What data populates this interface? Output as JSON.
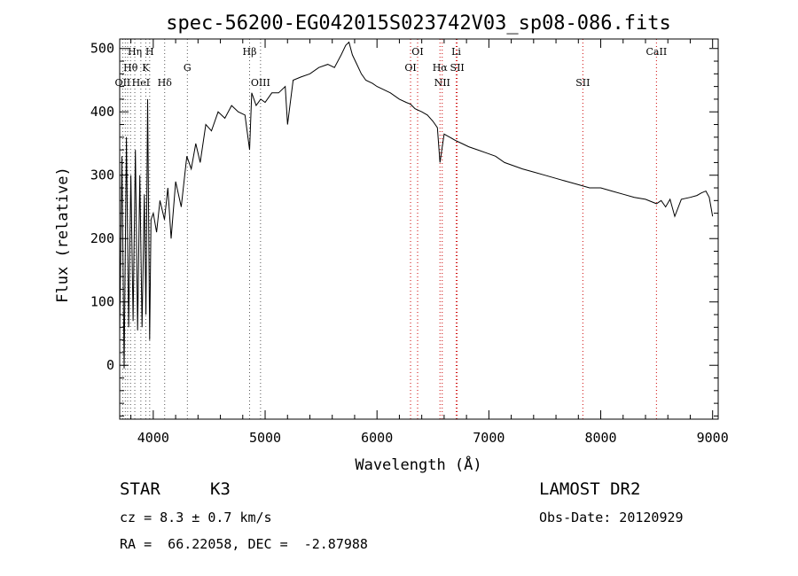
{
  "chart_data": {
    "type": "line",
    "title": "spec-56200-EG042015S023742V03_sp08-086.fits",
    "xlabel": "Wavelength (Å)",
    "ylabel": "Flux (relative)",
    "xlim": [
      3700,
      9050
    ],
    "ylim": [
      -85,
      515
    ],
    "x_ticks": [
      4000,
      5000,
      6000,
      7000,
      8000,
      9000
    ],
    "y_ticks": [
      0,
      100,
      200,
      300,
      400,
      500
    ],
    "grid": false,
    "series": [
      {
        "color": "#000000",
        "x": [
          3700,
          3720,
          3740,
          3760,
          3780,
          3800,
          3820,
          3840,
          3860,
          3880,
          3900,
          3920,
          3935,
          3950,
          3968,
          3980,
          4000,
          4030,
          4060,
          4100,
          4130,
          4160,
          4200,
          4250,
          4300,
          4340,
          4380,
          4420,
          4470,
          4520,
          4580,
          4640,
          4700,
          4760,
          4820,
          4861,
          4880,
          4920,
          4960,
          5000,
          5060,
          5120,
          5180,
          5200,
          5250,
          5320,
          5400,
          5480,
          5560,
          5620,
          5680,
          5720,
          5750,
          5780,
          5820,
          5860,
          5900,
          5960,
          6000,
          6060,
          6120,
          6200,
          6260,
          6300,
          6340,
          6400,
          6450,
          6500,
          6540,
          6563,
          6600,
          6650,
          6700,
          6760,
          6820,
          6900,
          6980,
          7060,
          7140,
          7220,
          7300,
          7400,
          7500,
          7600,
          7700,
          7800,
          7900,
          8000,
          8100,
          8200,
          8300,
          8400,
          8498,
          8540,
          8580,
          8620,
          8662,
          8720,
          8800,
          8860,
          8900,
          8940,
          8970,
          9000
        ],
        "values": [
          50,
          330,
          -5,
          360,
          60,
          300,
          70,
          340,
          55,
          300,
          60,
          270,
          80,
          420,
          40,
          230,
          240,
          210,
          260,
          230,
          280,
          200,
          290,
          250,
          330,
          310,
          350,
          320,
          380,
          370,
          400,
          390,
          410,
          400,
          395,
          340,
          430,
          410,
          420,
          415,
          430,
          430,
          440,
          380,
          450,
          455,
          460,
          470,
          475,
          470,
          490,
          505,
          510,
          490,
          475,
          460,
          450,
          445,
          440,
          435,
          430,
          420,
          415,
          412,
          405,
          400,
          395,
          385,
          375,
          320,
          365,
          360,
          355,
          350,
          345,
          340,
          335,
          330,
          320,
          315,
          310,
          305,
          300,
          295,
          290,
          285,
          280,
          280,
          275,
          270,
          265,
          262,
          255,
          260,
          250,
          262,
          235,
          262,
          265,
          268,
          272,
          275,
          265,
          235
        ]
      }
    ],
    "line_labels": [
      {
        "label": "Hη",
        "row": 1,
        "x": 3835
      },
      {
        "label": "H",
        "row": 1,
        "x": 3968
      },
      {
        "label": "Hθ",
        "row": 2,
        "x": 3797
      },
      {
        "label": "K",
        "row": 2,
        "x": 3933
      },
      {
        "label": "G",
        "row": 2,
        "x": 4305
      },
      {
        "label": "OII",
        "row": 3,
        "x": 3727
      },
      {
        "label": "HeI",
        "row": 3,
        "x": 3889
      },
      {
        "label": "Hδ",
        "row": 3,
        "x": 4102
      },
      {
        "label": "Hβ",
        "row": 1,
        "x": 4861
      },
      {
        "label": "OIII",
        "row": 3,
        "x": 4959
      },
      {
        "label": "OI",
        "row": 1,
        "x": 6363
      },
      {
        "label": "OI",
        "row": 2,
        "x": 6300
      },
      {
        "label": "Li",
        "row": 1,
        "x": 6708
      },
      {
        "label": "Hα",
        "row": 2,
        "x": 6563
      },
      {
        "label": "SII",
        "row": 2,
        "x": 6717
      },
      {
        "label": "NII",
        "row": 3,
        "x": 6583
      },
      {
        "label": "SII",
        "row": 3,
        "x": 7840
      },
      {
        "label": "CaII",
        "row": 1,
        "x": 8498
      }
    ],
    "black_line_markers": [
      3727,
      3750,
      3771,
      3797,
      3835,
      3889,
      3933,
      3968,
      4102,
      4305,
      4861,
      4959
    ],
    "red_line_markers": [
      6300,
      6363,
      6563,
      6583,
      6708,
      6717,
      7840,
      8498
    ]
  },
  "info": {
    "object_class": "STAR",
    "subclass": "K3",
    "survey": "LAMOST DR2",
    "cz": "cz = 8.3 ± 0.7 km/s",
    "obs_date": "Obs-Date: 20120929",
    "coords": "RA =  66.22058, DEC =  -2.87988"
  }
}
